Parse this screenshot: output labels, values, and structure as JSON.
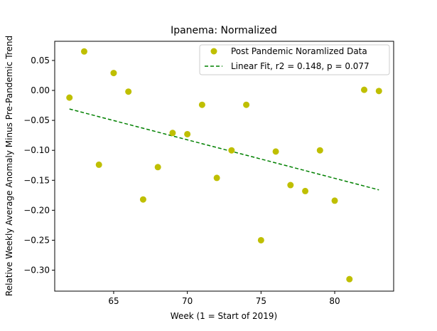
{
  "chart_data": {
    "type": "scatter",
    "title": "Ipanema: Normalized",
    "xlabel": "Week (1 = Start of 2019)",
    "ylabel": "Relative Weekly Average Anomaly Minus Pre-Pandemic Trend",
    "xlim": [
      61,
      84
    ],
    "ylim": [
      -0.335,
      0.082
    ],
    "xticks": [
      65,
      70,
      75,
      80
    ],
    "xtick_labels": [
      "65",
      "70",
      "75",
      "80"
    ],
    "yticks": [
      0.05,
      0.0,
      -0.05,
      -0.1,
      -0.15,
      -0.2,
      -0.25,
      -0.3
    ],
    "ytick_labels": [
      "0.05",
      "0.00",
      "−0.05",
      "−0.10",
      "−0.15",
      "−0.20",
      "−0.25",
      "−0.30"
    ],
    "grid": false,
    "legend_position": "top-right",
    "series": [
      {
        "name": "Post Pandemic Noramlized Data",
        "type": "scatter",
        "color": "#bfbf00",
        "x": [
          62,
          63,
          64,
          65,
          66,
          67,
          68,
          69,
          70,
          71,
          72,
          73,
          74,
          75,
          76,
          77,
          78,
          79,
          80,
          81,
          82,
          83
        ],
        "y": [
          -0.012,
          0.065,
          -0.124,
          0.029,
          -0.002,
          -0.182,
          -0.128,
          -0.071,
          -0.073,
          -0.024,
          -0.146,
          -0.1,
          -0.024,
          -0.25,
          -0.102,
          -0.158,
          -0.168,
          -0.1,
          -0.184,
          -0.315,
          0.001,
          -0.001
        ]
      },
      {
        "name": "Linear Fit, r2 = 0.148, p = 0.077",
        "type": "line",
        "color": "#008000",
        "style": "dashed",
        "x": [
          62,
          83
        ],
        "y": [
          -0.031,
          -0.166
        ]
      }
    ]
  }
}
